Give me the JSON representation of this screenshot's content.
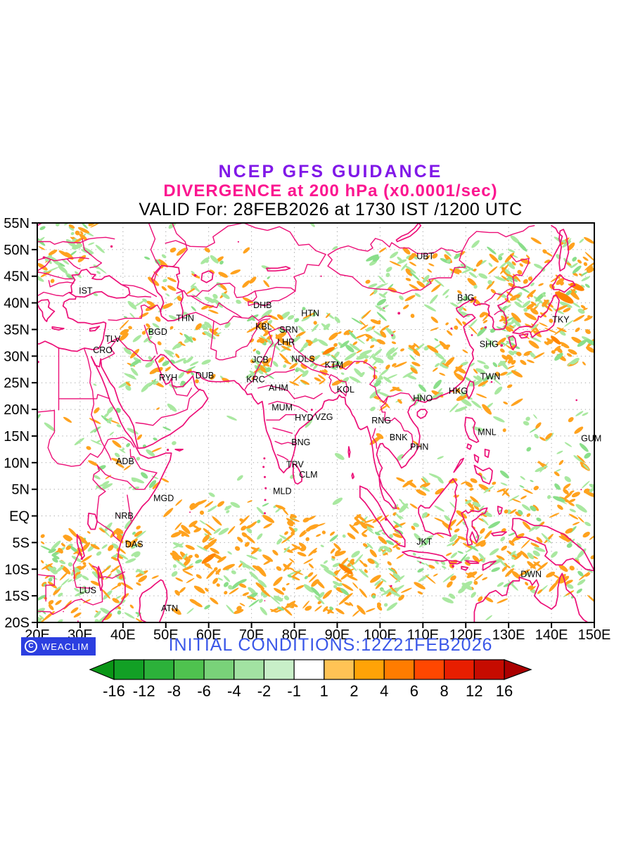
{
  "header": {
    "line1": "NCEP GFS GUIDANCE",
    "line2": "DIVERGENCE at 200 hPa (x0.0001/sec)",
    "line3": "VALID For: 28FEB2026 at 1730 IST /1200 UTC",
    "line1_color": "#8018e8",
    "line2_color": "#fb1690",
    "line3_color": "#000000"
  },
  "map": {
    "lon_min": 20,
    "lon_max": 150,
    "lat_min": -20,
    "lat_max": 55,
    "lat_tick_labels": [
      "55N",
      "50N",
      "45N",
      "40N",
      "35N",
      "30N",
      "25N",
      "20N",
      "15N",
      "10N",
      "5N",
      "EQ",
      "5S",
      "10S",
      "15S",
      "20S"
    ],
    "lat_tick_values": [
      55,
      50,
      45,
      40,
      35,
      30,
      25,
      20,
      15,
      10,
      5,
      0,
      -5,
      -10,
      -15,
      -20
    ],
    "lon_tick_labels": [
      "20E",
      "30E",
      "40E",
      "50E",
      "60E",
      "70E",
      "80E",
      "90E",
      "100E",
      "110E",
      "120E",
      "130E",
      "140E",
      "150E"
    ],
    "lon_tick_values": [
      20,
      30,
      40,
      50,
      60,
      70,
      80,
      90,
      100,
      110,
      120,
      130,
      140,
      150
    ],
    "stations": [
      {
        "code": "IST",
        "lon": 29.7,
        "lat": 41.7
      },
      {
        "code": "THN",
        "lon": 52.4,
        "lat": 36.6
      },
      {
        "code": "BGD",
        "lon": 45.9,
        "lat": 34.0
      },
      {
        "code": "TLV",
        "lon": 35.8,
        "lat": 32.7
      },
      {
        "code": "CRO",
        "lon": 33.0,
        "lat": 30.6
      },
      {
        "code": "RYH",
        "lon": 48.4,
        "lat": 25.4
      },
      {
        "code": "DUB",
        "lon": 56.9,
        "lat": 25.8
      },
      {
        "code": "DHB",
        "lon": 70.4,
        "lat": 39.0
      },
      {
        "code": "KBL",
        "lon": 70.9,
        "lat": 35.0
      },
      {
        "code": "SRN",
        "lon": 76.5,
        "lat": 34.4
      },
      {
        "code": "LHR",
        "lon": 76.0,
        "lat": 32.1
      },
      {
        "code": "HTN",
        "lon": 81.6,
        "lat": 37.5
      },
      {
        "code": "JCB",
        "lon": 70.1,
        "lat": 28.8
      },
      {
        "code": "NDLS",
        "lon": 79.3,
        "lat": 28.9
      },
      {
        "code": "KTM",
        "lon": 87.1,
        "lat": 27.8
      },
      {
        "code": "KRC",
        "lon": 68.8,
        "lat": 25.1
      },
      {
        "code": "AHM",
        "lon": 74.0,
        "lat": 23.5
      },
      {
        "code": "KOL",
        "lon": 89.9,
        "lat": 23.2
      },
      {
        "code": "MUM",
        "lon": 74.7,
        "lat": 19.8
      },
      {
        "code": "HYD",
        "lon": 80.1,
        "lat": 17.9
      },
      {
        "code": "VZG",
        "lon": 84.8,
        "lat": 18.0
      },
      {
        "code": "RNG",
        "lon": 98.0,
        "lat": 17.4
      },
      {
        "code": "BNG",
        "lon": 79.3,
        "lat": 13.3
      },
      {
        "code": "TRV",
        "lon": 78.1,
        "lat": 9.1
      },
      {
        "code": "CLM",
        "lon": 81.1,
        "lat": 7.2
      },
      {
        "code": "MLD",
        "lon": 75.0,
        "lat": 4.1
      },
      {
        "code": "BNK",
        "lon": 102.2,
        "lat": 14.2
      },
      {
        "code": "PHN",
        "lon": 107.0,
        "lat": 12.4
      },
      {
        "code": "HNO",
        "lon": 107.7,
        "lat": 21.5
      },
      {
        "code": "HKG",
        "lon": 116.0,
        "lat": 22.9
      },
      {
        "code": "TWN",
        "lon": 123.4,
        "lat": 25.6
      },
      {
        "code": "SHG",
        "lon": 123.2,
        "lat": 31.7
      },
      {
        "code": "BJG",
        "lon": 118.0,
        "lat": 40.4
      },
      {
        "code": "UBT",
        "lon": 108.5,
        "lat": 48.2
      },
      {
        "code": "TKY",
        "lon": 140.2,
        "lat": 36.3
      },
      {
        "code": "MNL",
        "lon": 122.8,
        "lat": 15.2
      },
      {
        "code": "GUM",
        "lon": 146.9,
        "lat": 14.0
      },
      {
        "code": "JKT",
        "lon": 108.5,
        "lat": -5.4
      },
      {
        "code": "DWN",
        "lon": 132.8,
        "lat": -11.5
      },
      {
        "code": "ADB",
        "lon": 38.4,
        "lat": 9.7
      },
      {
        "code": "MGD",
        "lon": 47.1,
        "lat": 2.8
      },
      {
        "code": "NRB",
        "lon": 38.1,
        "lat": -0.5
      },
      {
        "code": "DAS",
        "lon": 40.5,
        "lat": -5.9
      },
      {
        "code": "LUS",
        "lon": 29.8,
        "lat": -14.5
      },
      {
        "code": "ATN",
        "lon": 48.9,
        "lat": -17.9
      }
    ]
  },
  "footer": {
    "credit": "WEACLIM",
    "copyright_glyph": "C",
    "badge_color": "#2c3fe0",
    "initial_conditions": "INITIAL CONDITIONS:12Z21FEB2026",
    "initial_conditions_color": "#3a57e8",
    "colorbar": {
      "labels": [
        "-16",
        "-12",
        "-8",
        "-6",
        "-4",
        "-2",
        "-1",
        "1",
        "2",
        "4",
        "6",
        "8",
        "12",
        "16"
      ],
      "box_colors": [
        "#12a025",
        "#2cb13a",
        "#4fc24f",
        "#79d279",
        "#a2e2a2",
        "#c8efc8",
        "#ffffff",
        "#ffc355",
        "#ffa307",
        "#ff7c00",
        "#ff4700",
        "#e81e00",
        "#c60b00"
      ],
      "left_arrow_color": "#0a9616",
      "right_arrow_color": "#ab0000"
    }
  },
  "colors": {
    "coastline": "#ec0e77",
    "patch_orange": "#ffa21e",
    "patch_orange_deep": "#ff8400",
    "patch_green": "#a9e8a0",
    "patch_green_deep": "#8ade8a",
    "gridline": "#a8a8a8",
    "frame": "#000000"
  }
}
